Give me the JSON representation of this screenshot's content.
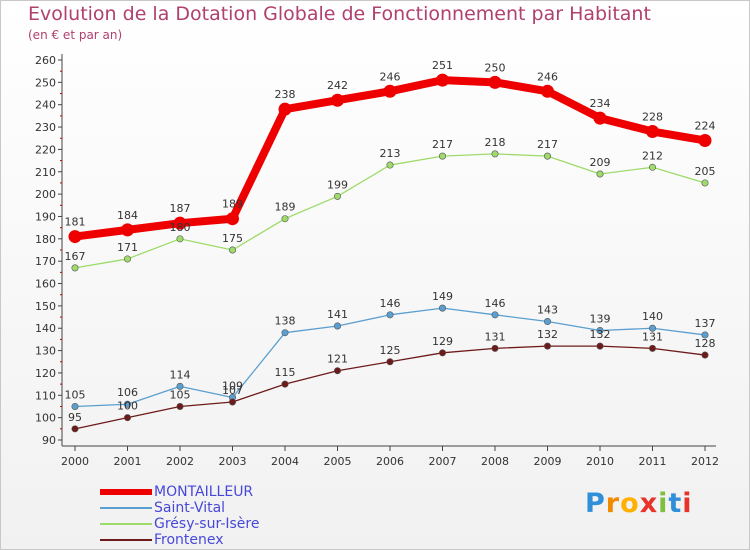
{
  "title": "Evolution de la Dotation Globale de Fonctionnement par Habitant",
  "subtitle": "(en € et par an)",
  "chart_data": {
    "type": "line",
    "title": "Evolution de la Dotation Globale de Fonctionnement par Habitant",
    "subtitle": "(en € et par an)",
    "xlabel": "",
    "ylabel": "",
    "x": [
      "2000",
      "2001",
      "2002",
      "2003",
      "2004",
      "2005",
      "2006",
      "2007",
      "2008",
      "2009",
      "2010",
      "2011",
      "2012"
    ],
    "ylim": [
      90,
      260
    ],
    "yticks": [
      90,
      100,
      110,
      120,
      130,
      140,
      150,
      160,
      170,
      180,
      190,
      200,
      210,
      220,
      230,
      240,
      250,
      260
    ],
    "grid": false,
    "legend_position": "bottom-left",
    "series": [
      {
        "name": "MONTAILLEUR",
        "color": "#ee0000",
        "values": [
          181,
          184,
          187,
          189,
          238,
          242,
          246,
          251,
          250,
          246,
          234,
          228,
          224
        ]
      },
      {
        "name": "Saint-Vital",
        "color": "#5b9fd0",
        "values": [
          105,
          106,
          114,
          109,
          138,
          141,
          146,
          149,
          146,
          143,
          139,
          140,
          137
        ]
      },
      {
        "name": "Grésy-sur-Isère",
        "color": "#9edb6a",
        "values": [
          167,
          171,
          180,
          175,
          189,
          199,
          213,
          217,
          218,
          217,
          209,
          212,
          205
        ]
      },
      {
        "name": "Frontenex",
        "color": "#6e1a1a",
        "values": [
          95,
          100,
          105,
          107,
          115,
          121,
          125,
          129,
          131,
          132,
          132,
          131,
          128
        ]
      }
    ]
  },
  "logo": {
    "letters": [
      "P",
      "r",
      "o",
      "x",
      "i",
      "t",
      "i"
    ],
    "colors": [
      "#2f8fd8",
      "#f08a00",
      "#ffb000",
      "#e8332a",
      "#7fbf3f",
      "#2f8fd8",
      "#e8332a"
    ]
  }
}
